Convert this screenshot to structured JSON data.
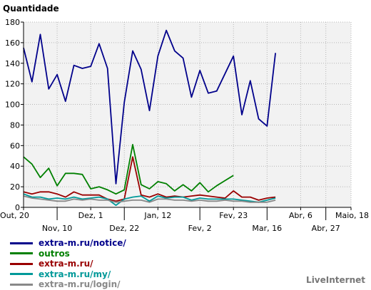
{
  "chart_data": {
    "type": "line",
    "ylabel": "Quantidade",
    "ylim": [
      0,
      180
    ],
    "yticks": [
      0,
      20,
      40,
      60,
      80,
      100,
      120,
      140,
      160,
      180
    ],
    "x_count": 40,
    "xticks_top": [
      {
        "index": 0,
        "label": "Out, 20"
      },
      {
        "index": 8,
        "label": "Dez, 1"
      },
      {
        "index": 16,
        "label": "Jan, 12"
      },
      {
        "index": 25,
        "label": "Fev, 23"
      },
      {
        "index": 33,
        "label": "Abr, 6"
      },
      {
        "index": 39,
        "label": "Maio, 18"
      }
    ],
    "xticks_bottom": [
      {
        "index": 4,
        "label": "Nov, 10"
      },
      {
        "index": 12,
        "label": "Dez, 22"
      },
      {
        "index": 21,
        "label": "Fev, 2"
      },
      {
        "index": 29,
        "label": "Mar, 16"
      },
      {
        "index": 36,
        "label": "Abr, 27"
      }
    ],
    "grid": true,
    "legend_position": "bottom-left",
    "series": [
      {
        "name": "extra-m.ru/notice/",
        "color": "#00008b",
        "values": [
          155,
          122,
          168,
          115,
          129,
          103,
          138,
          135,
          137,
          159,
          135,
          23,
          102,
          152,
          134,
          94,
          147,
          172,
          152,
          145,
          107,
          133,
          111,
          113,
          130,
          147,
          90,
          123,
          86,
          79,
          150,
          null,
          null,
          null,
          null,
          null,
          null,
          null,
          null,
          null
        ]
      },
      {
        "name": "outros",
        "color": "#008000",
        "values": [
          49,
          42,
          29,
          38,
          21,
          33,
          33,
          32,
          18,
          20,
          17,
          13,
          17,
          61,
          22,
          18,
          25,
          23,
          16,
          22,
          16,
          24,
          15,
          21,
          26,
          31,
          null,
          null,
          null,
          null,
          null,
          null,
          null,
          null,
          null,
          null,
          null,
          null,
          null,
          null
        ]
      },
      {
        "name": "extra-m.ru/",
        "color": "#990000",
        "values": [
          15,
          13,
          15,
          15,
          13,
          10,
          15,
          12,
          12,
          12,
          8,
          6,
          8,
          49,
          12,
          10,
          13,
          10,
          11,
          10,
          11,
          12,
          11,
          10,
          9,
          16,
          10,
          10,
          7,
          9,
          10,
          null,
          null,
          null,
          null,
          null,
          null,
          null,
          null,
          null
        ]
      },
      {
        "name": "extra-m.ru/my/",
        "color": "#009999",
        "values": [
          13,
          10,
          10,
          8,
          9,
          8,
          10,
          8,
          9,
          10,
          8,
          2,
          8,
          10,
          11,
          6,
          11,
          9,
          10,
          10,
          7,
          9,
          8,
          8,
          8,
          8,
          7,
          6,
          5,
          7,
          9,
          null,
          null,
          null,
          null,
          null,
          null,
          null,
          null,
          null
        ]
      },
      {
        "name": "extra-m.ru/login/",
        "color": "#888888",
        "values": [
          11,
          9,
          8,
          7,
          6,
          6,
          8,
          7,
          8,
          7,
          7,
          5,
          6,
          7,
          7,
          5,
          8,
          8,
          7,
          7,
          6,
          7,
          6,
          6,
          7,
          6,
          6,
          5,
          5,
          5,
          7,
          null,
          null,
          null,
          null,
          null,
          null,
          null,
          null,
          null
        ]
      }
    ]
  },
  "brand": "LiveInternet"
}
